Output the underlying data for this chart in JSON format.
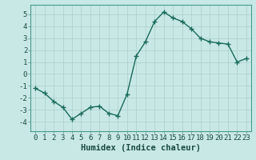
{
  "x": [
    0,
    1,
    2,
    3,
    4,
    5,
    6,
    7,
    8,
    9,
    10,
    11,
    12,
    13,
    14,
    15,
    16,
    17,
    18,
    19,
    20,
    21,
    22,
    23
  ],
  "y": [
    -1.2,
    -1.6,
    -2.3,
    -2.8,
    -3.8,
    -3.3,
    -2.8,
    -2.7,
    -3.3,
    -3.5,
    -1.7,
    1.5,
    2.7,
    4.4,
    5.2,
    4.7,
    4.4,
    3.8,
    3.0,
    2.7,
    2.6,
    2.5,
    1.0,
    1.3
  ],
  "color": "#1a6b5a",
  "bg_color": "#c8e8e5",
  "grid_color": "#aacfcc",
  "xlabel": "Humidex (Indice chaleur)",
  "ylim": [
    -4.8,
    5.8
  ],
  "xlim": [
    -0.5,
    23.5
  ],
  "yticks": [
    -4,
    -3,
    -2,
    -1,
    0,
    1,
    2,
    3,
    4,
    5
  ],
  "xticks": [
    0,
    1,
    2,
    3,
    4,
    5,
    6,
    7,
    8,
    9,
    10,
    11,
    12,
    13,
    14,
    15,
    16,
    17,
    18,
    19,
    20,
    21,
    22,
    23
  ],
  "marker": "+",
  "markersize": 4,
  "markeredgewidth": 1.0,
  "linewidth": 1.0,
  "xlabel_fontsize": 7.5,
  "tick_fontsize": 6.5,
  "spine_color": "#4a9a8a"
}
